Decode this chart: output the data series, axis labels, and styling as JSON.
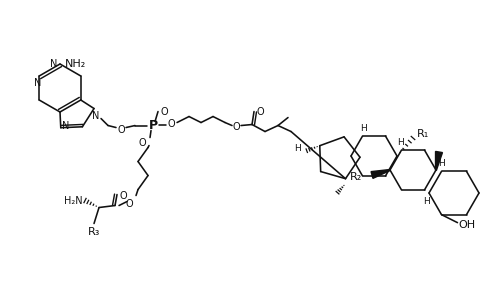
{
  "bg_color": "#ffffff",
  "line_color": "#111111",
  "line_width": 1.15,
  "text_color": "#111111",
  "font_size": 7.0,
  "figsize": [
    5.0,
    2.93
  ],
  "dpi": 100,
  "atoms": {
    "NH2_adenine": "NH₂",
    "N_label": "N",
    "O_label": "O",
    "P_label": "P",
    "OH_label": "OH",
    "H2N_label": "H₂N",
    "R1_label": "R₁",
    "R2_label": "R₂",
    "R3_label": "R₃",
    "H_label": "H"
  }
}
